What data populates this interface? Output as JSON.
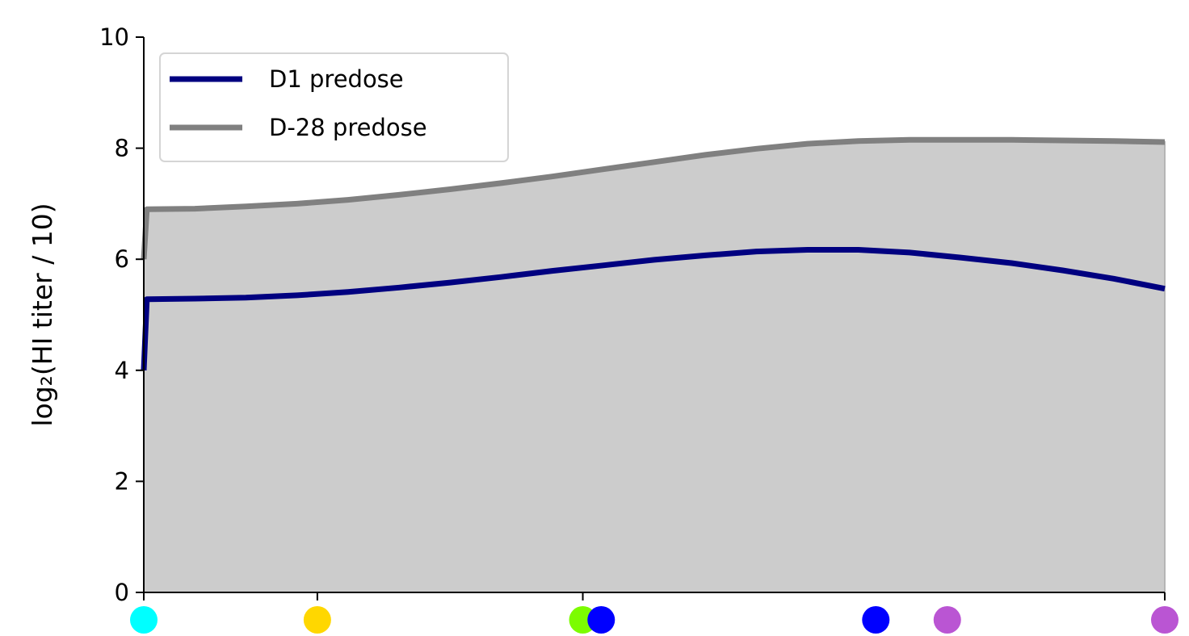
{
  "chart_data": {
    "type": "line",
    "ylabel": "log₂(HI titer / 10)",
    "ylim": [
      0,
      10
    ],
    "xlim": [
      0,
      1
    ],
    "yticks": [
      0,
      2,
      4,
      6,
      8,
      10
    ],
    "x_ticks": [
      0,
      0.17,
      0.43,
      1.0
    ],
    "fill_color": "#cccccc",
    "legend_position": "top-left",
    "grid": false,
    "series": [
      {
        "name": "D1 predose",
        "color": "#000080",
        "x": [
          0,
          0.003,
          0.05,
          0.1,
          0.15,
          0.2,
          0.25,
          0.3,
          0.35,
          0.4,
          0.45,
          0.5,
          0.55,
          0.6,
          0.65,
          0.7,
          0.75,
          0.8,
          0.85,
          0.9,
          0.95,
          1.0
        ],
        "y": [
          4.0,
          5.28,
          5.29,
          5.31,
          5.35,
          5.41,
          5.49,
          5.58,
          5.68,
          5.79,
          5.89,
          5.99,
          6.07,
          6.14,
          6.17,
          6.17,
          6.12,
          6.03,
          5.93,
          5.8,
          5.65,
          5.47
        ]
      },
      {
        "name": "D-28 predose",
        "color": "#808080",
        "x": [
          0,
          0.003,
          0.05,
          0.1,
          0.15,
          0.2,
          0.25,
          0.3,
          0.35,
          0.4,
          0.45,
          0.5,
          0.55,
          0.6,
          0.65,
          0.7,
          0.75,
          0.8,
          0.85,
          0.9,
          0.95,
          1.0
        ],
        "y": [
          6.0,
          6.9,
          6.91,
          6.95,
          7.0,
          7.07,
          7.16,
          7.26,
          7.37,
          7.49,
          7.62,
          7.75,
          7.88,
          7.99,
          8.08,
          8.13,
          8.15,
          8.15,
          8.15,
          8.14,
          8.13,
          8.11
        ]
      }
    ],
    "markers": [
      {
        "x": 0.0,
        "color": "#00ffff"
      },
      {
        "x": 0.17,
        "color": "#ffd700"
      },
      {
        "x": 0.43,
        "color": "#7cfc00"
      },
      {
        "x": 0.448,
        "color": "#0000ff"
      },
      {
        "x": 0.717,
        "color": "#0000ff"
      },
      {
        "x": 0.787,
        "color": "#ba55d3"
      },
      {
        "x": 1.0,
        "color": "#ba55d3"
      }
    ]
  }
}
